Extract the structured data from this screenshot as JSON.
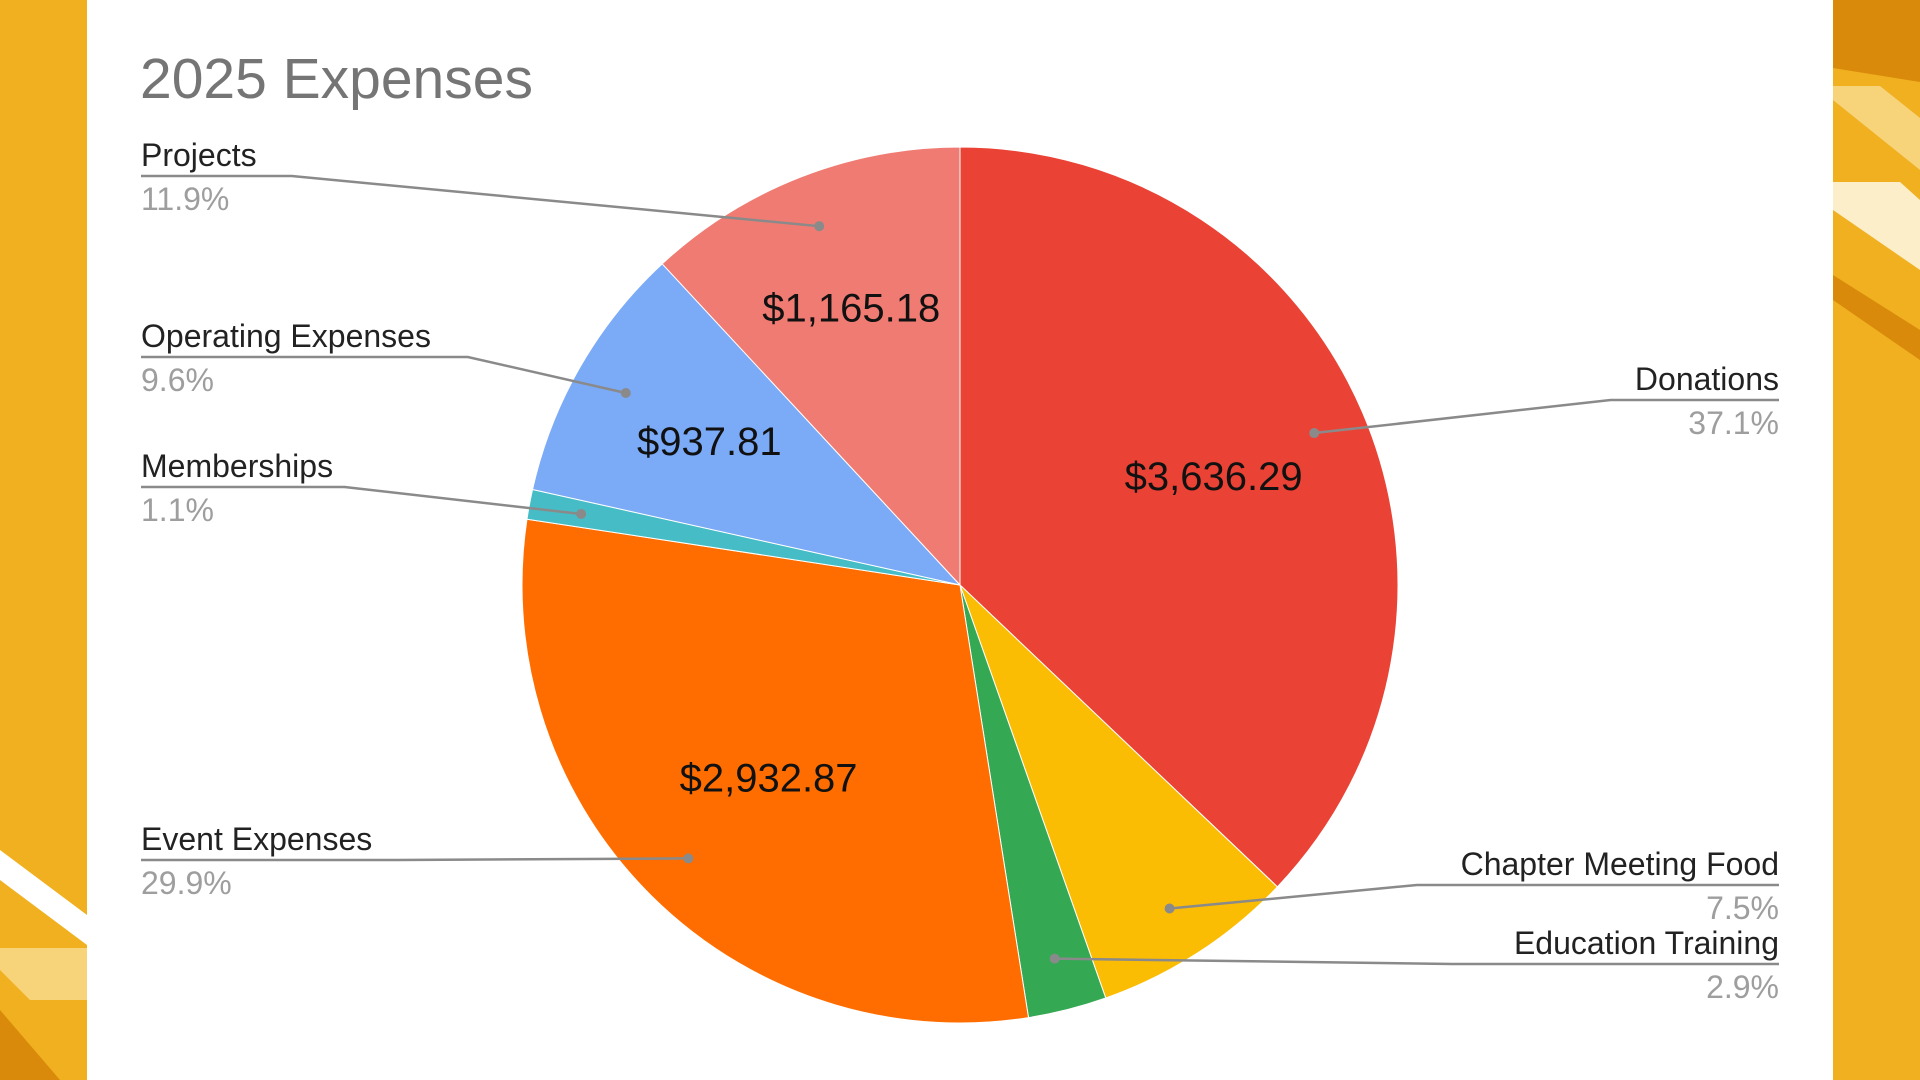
{
  "chart_data": {
    "type": "pie",
    "title": "2025 Expenses",
    "categories": [
      "Donations",
      "Chapter Meeting Food",
      "Education Training",
      "Event Expenses",
      "Memberships",
      "Operating Expenses",
      "Projects"
    ],
    "percent_labels": [
      "37.1%",
      "7.5%",
      "2.9%",
      "29.9%",
      "1.1%",
      "9.6%",
      "11.9%"
    ],
    "values": [
      37.1,
      7.5,
      2.9,
      29.9,
      1.1,
      9.6,
      11.9
    ],
    "value_labels": [
      "$3,636.29",
      "",
      "",
      "$2,932.87",
      "",
      "$937.81",
      "$1,165.18"
    ],
    "colors": [
      "#ea4335",
      "#fbbc04",
      "#34a853",
      "#ff6d01",
      "#46bdc6",
      "#7baaf7",
      "#f07b72"
    ],
    "legend": "labels with leader lines"
  },
  "theme": {
    "background": "#f0b020",
    "panel": "#ffffff",
    "accent_dark": "#d98a0a",
    "accent_light": "#f7d37a"
  }
}
